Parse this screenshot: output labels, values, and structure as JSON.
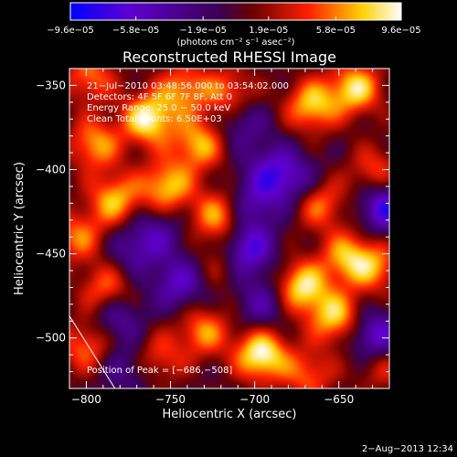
{
  "chart_data": {
    "type": "heatmap",
    "title": "Reconstructed RHESSI Image",
    "xlabel": "Heliocentric X (arcsec)",
    "ylabel": "Heliocentric Y (arcsec)",
    "xlim": [
      -810,
      -620
    ],
    "ylim": [
      -530,
      -340
    ],
    "x_ticks": [
      -800,
      -750,
      -700,
      -650
    ],
    "y_ticks": [
      -350,
      -400,
      -450,
      -500
    ],
    "x_tick_labels": [
      "−800",
      "−750",
      "−700",
      "−650"
    ],
    "y_tick_labels": [
      "−350",
      "−400",
      "−450",
      "−500"
    ],
    "colorbar": {
      "min": -9.6e-05,
      "max": 9.6e-05,
      "tick_values": [
        -9.6e-05,
        -5.8e-05,
        -1.9e-05,
        1.9e-05,
        5.8e-05,
        9.6e-05
      ],
      "tick_labels": [
        "−9.6e−05",
        "−5.8e−05",
        "−1.9e−05",
        "1.9e−05",
        "5.8e−05",
        "9.6e−05"
      ],
      "unit_label": "(photons cm⁻² s⁻¹ asec⁻²)"
    },
    "info_lines": [
      "21−Jul−2010 03:48:56.000 to 03:54:02.000",
      "Detectors: 4F 5F 6F 7F 8F, Att 0",
      "Energy Range: 25.0 − 50.0 keV",
      "Clean     Total counts: 6.50E+03"
    ],
    "peak_label": "Position of Peak = [−686,−508]",
    "peak": [
      -686,
      -508
    ],
    "limb_line": [
      [
        -810,
        -487
      ],
      [
        -783,
        -530
      ]
    ],
    "sources": [
      {
        "x": -795,
        "y": -385,
        "v": 6.5e-05
      },
      {
        "x": -763,
        "y": -370,
        "v": 9e-05
      },
      {
        "x": -742,
        "y": -352,
        "v": 6e-05
      },
      {
        "x": -733,
        "y": -385,
        "v": 7e-05
      },
      {
        "x": -715,
        "y": -355,
        "v": 5.5e-05
      },
      {
        "x": -666,
        "y": -362,
        "v": 7.5e-05
      },
      {
        "x": -640,
        "y": -352,
        "v": 8e-05
      },
      {
        "x": -628,
        "y": -402,
        "v": 5e-05
      },
      {
        "x": -662,
        "y": -420,
        "v": 6e-05
      },
      {
        "x": -783,
        "y": -418,
        "v": 7e-05
      },
      {
        "x": -752,
        "y": -410,
        "v": 7.5e-05
      },
      {
        "x": -722,
        "y": -428,
        "v": 6.5e-05
      },
      {
        "x": -805,
        "y": -440,
        "v": 5.5e-05
      },
      {
        "x": -788,
        "y": -472,
        "v": 6e-05
      },
      {
        "x": -645,
        "y": -452,
        "v": 6.5e-05
      },
      {
        "x": -628,
        "y": -458,
        "v": 5.5e-05
      },
      {
        "x": -672,
        "y": -470,
        "v": 8.5e-05
      },
      {
        "x": -652,
        "y": -488,
        "v": 7.5e-05
      },
      {
        "x": -696,
        "y": -510,
        "v": 9.6e-05
      },
      {
        "x": -730,
        "y": -496,
        "v": 6e-05
      },
      {
        "x": -757,
        "y": -512,
        "v": 4.5e-05
      },
      {
        "x": -718,
        "y": -455,
        "v": 3.5e-05
      },
      {
        "x": -625,
        "y": -515,
        "v": 4.5e-05
      },
      {
        "x": -668,
        "y": -522,
        "v": 5e-05
      },
      {
        "x": -800,
        "y": -505,
        "v": 5.5e-05
      },
      {
        "x": -798,
        "y": -345,
        "v": 5.5e-05
      },
      {
        "x": -773,
        "y": -448,
        "v": -3.5e-05
      },
      {
        "x": -758,
        "y": -438,
        "v": -4e-05
      },
      {
        "x": -705,
        "y": -448,
        "v": -8e-05
      },
      {
        "x": -690,
        "y": -400,
        "v": -5e-05
      },
      {
        "x": -700,
        "y": -420,
        "v": -4.5e-05
      },
      {
        "x": -675,
        "y": -408,
        "v": -4.5e-05
      },
      {
        "x": -622,
        "y": -422,
        "v": -8e-05
      },
      {
        "x": -695,
        "y": -480,
        "v": -4.5e-05
      },
      {
        "x": -782,
        "y": -487,
        "v": -5e-05
      },
      {
        "x": -628,
        "y": -500,
        "v": -7.5e-05
      },
      {
        "x": -708,
        "y": -372,
        "v": -4e-05
      },
      {
        "x": -745,
        "y": -468,
        "v": -5.5e-05
      },
      {
        "x": -776,
        "y": -518,
        "v": -3.5e-05
      }
    ]
  },
  "footer_date": "2−Aug−2013 12:34",
  "colors": {
    "background": "#000000",
    "foreground": "#ffffff",
    "colormap": [
      "#0000ff",
      "#5f00d0",
      "#3a0054",
      "#6a0000",
      "#ff2000",
      "#ffd000",
      "#ffffff"
    ]
  }
}
